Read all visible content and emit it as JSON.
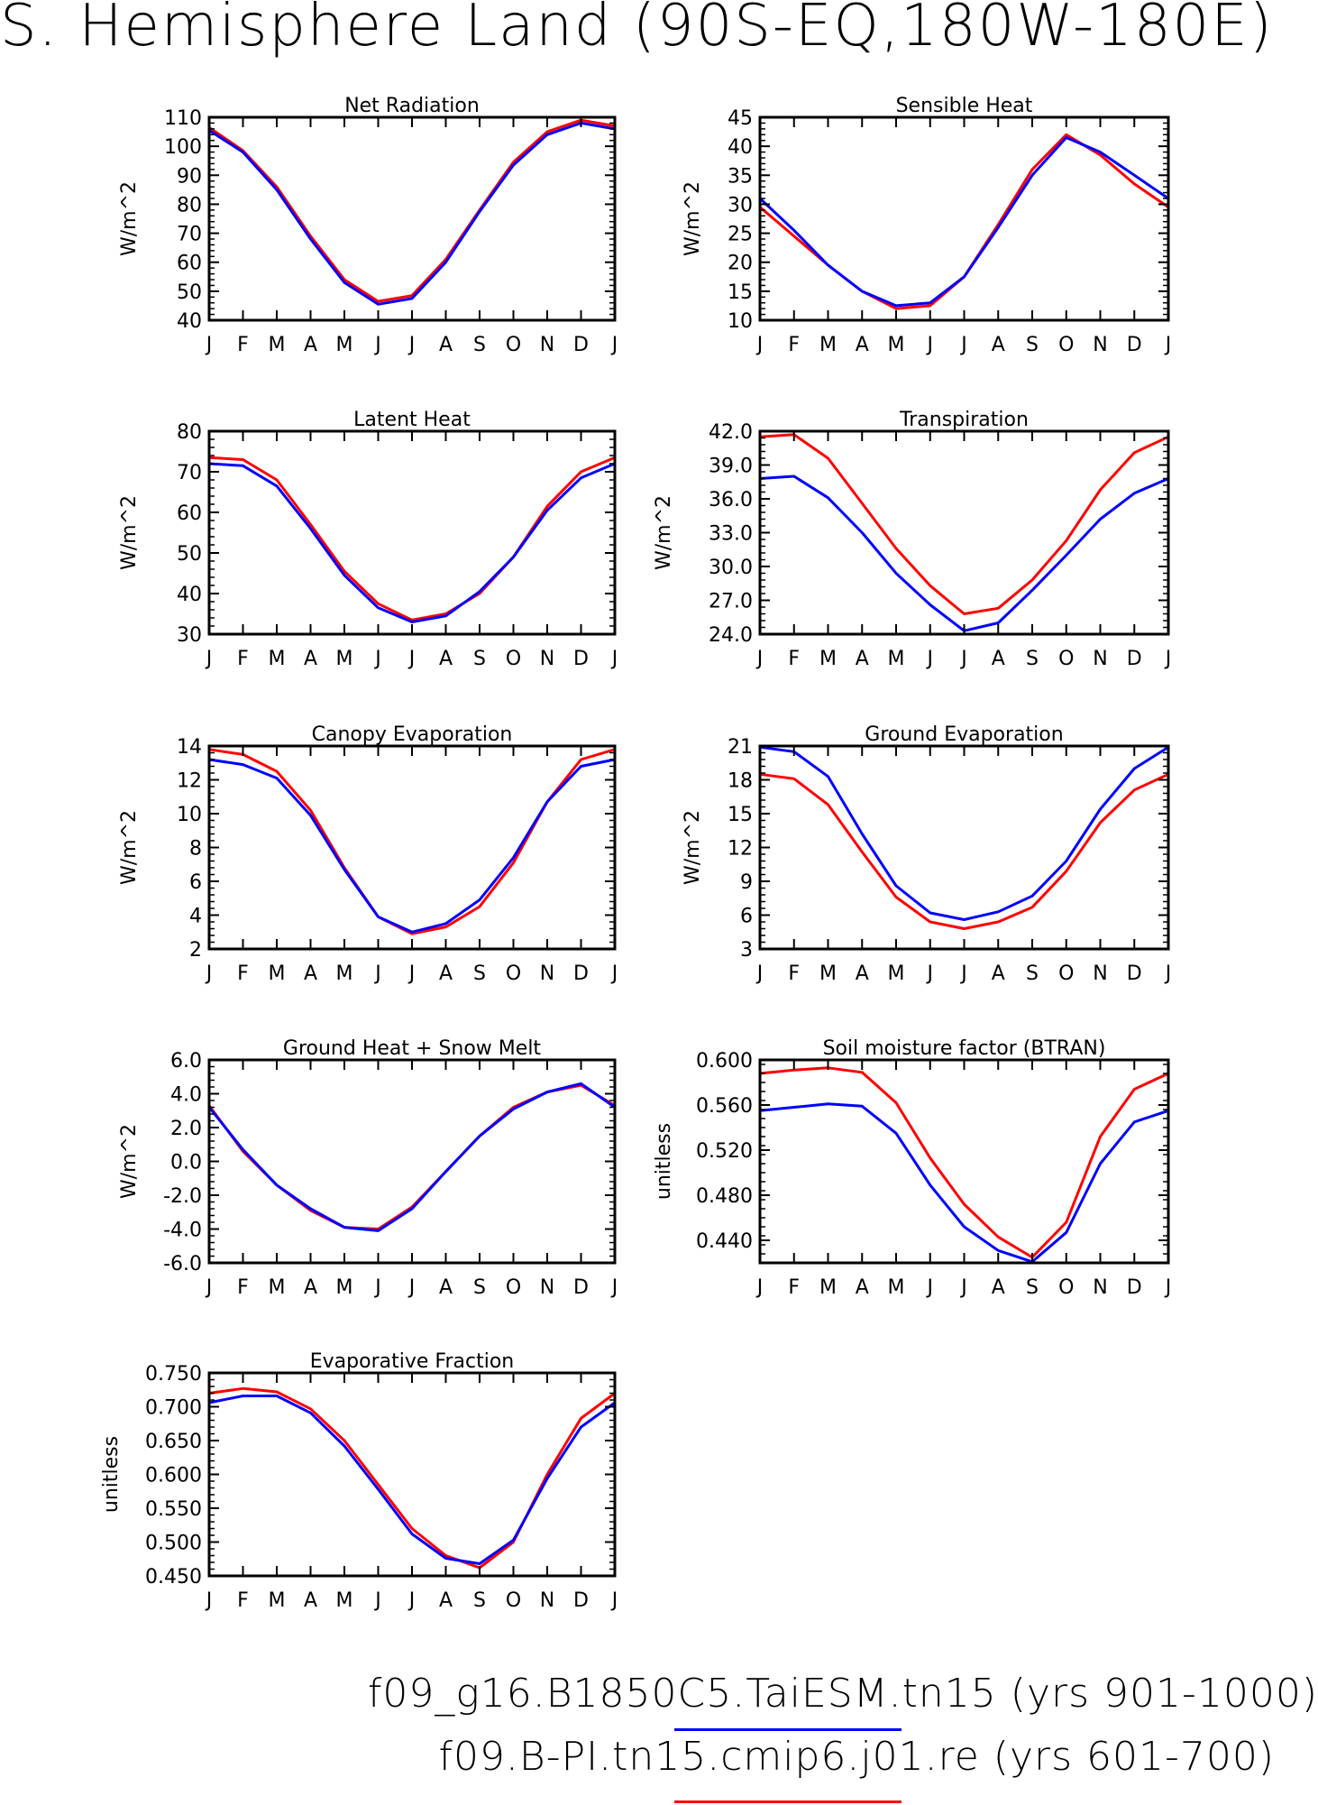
{
  "page": {
    "title": "S. Hemisphere Land (90S-EQ,180W-180E)"
  },
  "legend": [
    {
      "text": "f09_g16.B1850C5.TaiESM.tn15 (yrs 901-1000)",
      "color": "#0000ff"
    },
    {
      "text": "f09.B-PI.tn15.cmip6.j01.re (yrs 601-700)",
      "color": "#ff0000"
    }
  ],
  "chart_data": [
    {
      "type": "line",
      "title": "Net Radiation",
      "ylabel": "W/m^2",
      "categories": [
        "J",
        "F",
        "M",
        "A",
        "M",
        "J",
        "J",
        "A",
        "S",
        "O",
        "N",
        "D",
        "J"
      ],
      "ylim": [
        40,
        110
      ],
      "yticks": [
        "110",
        "100",
        "90",
        "80",
        "70",
        "60",
        "50",
        "40"
      ],
      "ytick_values": [
        110,
        100,
        90,
        80,
        70,
        60,
        50,
        40
      ],
      "series": [
        {
          "color": "#ff0000",
          "values": [
            106.5,
            98.5,
            86,
            69,
            54,
            46.5,
            48.5,
            61,
            78,
            94.5,
            105,
            109,
            107
          ]
        },
        {
          "color": "#0000ff",
          "values": [
            105.5,
            98,
            85,
            68,
            53,
            45.5,
            47.5,
            60,
            77.5,
            93.5,
            104,
            108,
            106
          ]
        }
      ]
    },
    {
      "type": "line",
      "title": "Sensible Heat",
      "ylabel": "W/m^2",
      "categories": [
        "J",
        "F",
        "M",
        "A",
        "M",
        "J",
        "J",
        "A",
        "S",
        "O",
        "N",
        "D",
        "J"
      ],
      "ylim": [
        10,
        45
      ],
      "yticks": [
        "45",
        "40",
        "35",
        "30",
        "25",
        "20",
        "15",
        "10"
      ],
      "ytick_values": [
        45,
        40,
        35,
        30,
        25,
        20,
        15,
        10
      ],
      "series": [
        {
          "color": "#ff0000",
          "values": [
            29.5,
            24.5,
            19.5,
            15,
            12,
            12.5,
            17.5,
            26.5,
            36,
            42,
            38.5,
            33.5,
            29.5
          ]
        },
        {
          "color": "#0000ff",
          "values": [
            31,
            25.5,
            19.5,
            15,
            12.5,
            13,
            17.5,
            26,
            35,
            41.5,
            39,
            35,
            31
          ]
        }
      ]
    },
    {
      "type": "line",
      "title": "Latent Heat",
      "ylabel": "W/m^2",
      "categories": [
        "J",
        "F",
        "M",
        "A",
        "M",
        "J",
        "J",
        "A",
        "S",
        "O",
        "N",
        "D",
        "J"
      ],
      "ylim": [
        30,
        80
      ],
      "yticks": [
        "80",
        "70",
        "60",
        "50",
        "40",
        "30"
      ],
      "ytick_values": [
        80,
        70,
        60,
        50,
        40,
        30
      ],
      "series": [
        {
          "color": "#ff0000",
          "values": [
            73.5,
            73,
            68,
            57,
            45.5,
            37.5,
            33.5,
            35,
            40,
            49,
            61.5,
            70,
            73.5
          ]
        },
        {
          "color": "#0000ff",
          "values": [
            72,
            71.5,
            66.5,
            56,
            44.5,
            36.5,
            33,
            34.5,
            40.5,
            49,
            60.5,
            68.5,
            72
          ]
        }
      ]
    },
    {
      "type": "line",
      "title": "Transpiration",
      "ylabel": "W/m^2",
      "categories": [
        "J",
        "F",
        "M",
        "A",
        "M",
        "J",
        "J",
        "A",
        "S",
        "O",
        "N",
        "D",
        "J"
      ],
      "ylim": [
        24,
        42
      ],
      "yticks": [
        "42.0",
        "39.0",
        "36.0",
        "33.0",
        "30.0",
        "27.0",
        "24.0"
      ],
      "ytick_values": [
        42,
        39,
        36,
        33,
        30,
        27,
        24
      ],
      "series": [
        {
          "color": "#ff0000",
          "values": [
            41.5,
            41.7,
            39.6,
            35.6,
            31.6,
            28.3,
            25.8,
            26.3,
            28.8,
            32.3,
            36.8,
            40.1,
            41.5
          ]
        },
        {
          "color": "#0000ff",
          "values": [
            37.8,
            38,
            36.1,
            33,
            29.4,
            26.6,
            24.3,
            25,
            27.9,
            31,
            34.2,
            36.5,
            37.8
          ]
        }
      ]
    },
    {
      "type": "line",
      "title": "Canopy Evaporation",
      "ylabel": "W/m^2",
      "categories": [
        "J",
        "F",
        "M",
        "A",
        "M",
        "J",
        "J",
        "A",
        "S",
        "O",
        "N",
        "D",
        "J"
      ],
      "ylim": [
        2,
        14
      ],
      "yticks": [
        "14",
        "12",
        "10",
        "8",
        "6",
        "4",
        "2"
      ],
      "ytick_values": [
        14,
        12,
        10,
        8,
        6,
        4,
        2
      ],
      "series": [
        {
          "color": "#ff0000",
          "values": [
            13.8,
            13.5,
            12.5,
            10.2,
            6.8,
            3.9,
            2.9,
            3.3,
            4.5,
            7.1,
            10.7,
            13.2,
            13.8
          ]
        },
        {
          "color": "#0000ff",
          "values": [
            13.2,
            12.9,
            12.1,
            9.9,
            6.7,
            3.9,
            3,
            3.5,
            4.9,
            7.4,
            10.7,
            12.8,
            13.2
          ]
        }
      ]
    },
    {
      "type": "line",
      "title": "Ground Evaporation",
      "ylabel": "W/m^2",
      "categories": [
        "J",
        "F",
        "M",
        "A",
        "M",
        "J",
        "J",
        "A",
        "S",
        "O",
        "N",
        "D",
        "J"
      ],
      "ylim": [
        3,
        21
      ],
      "yticks": [
        "21",
        "18",
        "15",
        "12",
        "9",
        "6",
        "3"
      ],
      "ytick_values": [
        21,
        18,
        15,
        12,
        9,
        6,
        3
      ],
      "series": [
        {
          "color": "#ff0000",
          "values": [
            18.5,
            18.1,
            15.8,
            11.6,
            7.6,
            5.4,
            4.8,
            5.4,
            6.7,
            9.9,
            14.2,
            17.1,
            18.5
          ]
        },
        {
          "color": "#0000ff",
          "values": [
            20.9,
            20.5,
            18.3,
            13.2,
            8.6,
            6.2,
            5.6,
            6.3,
            7.7,
            10.8,
            15.4,
            19,
            20.9
          ]
        }
      ]
    },
    {
      "type": "line",
      "title": "Ground Heat + Snow Melt",
      "ylabel": "W/m^2",
      "categories": [
        "J",
        "F",
        "M",
        "A",
        "M",
        "J",
        "J",
        "A",
        "S",
        "O",
        "N",
        "D",
        "J"
      ],
      "ylim": [
        -6,
        6
      ],
      "yticks": [
        "6.0",
        "4.0",
        "2.0",
        "0.0",
        "-2.0",
        "-4.0",
        "-6.0"
      ],
      "ytick_values": [
        6,
        4,
        2,
        0,
        -2,
        -4,
        -6
      ],
      "series": [
        {
          "color": "#ff0000",
          "values": [
            3.3,
            0.6,
            -1.4,
            -2.9,
            -3.9,
            -4,
            -2.7,
            -0.6,
            1.5,
            3.2,
            4.1,
            4.5,
            3.3
          ]
        },
        {
          "color": "#0000ff",
          "values": [
            3.2,
            0.7,
            -1.4,
            -2.8,
            -3.9,
            -4.1,
            -2.8,
            -0.6,
            1.5,
            3.1,
            4.1,
            4.6,
            3.2
          ]
        }
      ]
    },
    {
      "type": "line",
      "title": "Soil moisture factor (BTRAN)",
      "ylabel": "unitless",
      "categories": [
        "J",
        "F",
        "M",
        "A",
        "M",
        "J",
        "J",
        "A",
        "S",
        "O",
        "N",
        "D",
        "J"
      ],
      "ylim": [
        0.42,
        0.6
      ],
      "yticks": [
        "0.600",
        "0.560",
        "0.520",
        "0.480",
        "0.440"
      ],
      "ytick_values": [
        0.6,
        0.56,
        0.52,
        0.48,
        0.44
      ],
      "series": [
        {
          "color": "#ff0000",
          "values": [
            0.588,
            0.591,
            0.593,
            0.589,
            0.562,
            0.513,
            0.472,
            0.443,
            0.425,
            0.456,
            0.532,
            0.574,
            0.588
          ]
        },
        {
          "color": "#0000ff",
          "values": [
            0.555,
            0.558,
            0.561,
            0.559,
            0.535,
            0.489,
            0.452,
            0.431,
            0.421,
            0.447,
            0.508,
            0.545,
            0.555
          ]
        }
      ]
    },
    {
      "type": "line",
      "title": "Evaporative Fraction",
      "ylabel": "unitless",
      "categories": [
        "J",
        "F",
        "M",
        "A",
        "M",
        "J",
        "J",
        "A",
        "S",
        "O",
        "N",
        "D",
        "J"
      ],
      "ylim": [
        0.45,
        0.75
      ],
      "yticks": [
        "0.750",
        "0.700",
        "0.650",
        "0.600",
        "0.550",
        "0.500",
        "0.450"
      ],
      "ytick_values": [
        0.75,
        0.7,
        0.65,
        0.6,
        0.55,
        0.5,
        0.45
      ],
      "series": [
        {
          "color": "#ff0000",
          "values": [
            0.72,
            0.727,
            0.722,
            0.697,
            0.65,
            0.585,
            0.52,
            0.48,
            0.462,
            0.5,
            0.6,
            0.683,
            0.72
          ]
        },
        {
          "color": "#0000ff",
          "values": [
            0.706,
            0.716,
            0.716,
            0.691,
            0.642,
            0.578,
            0.512,
            0.476,
            0.468,
            0.503,
            0.594,
            0.67,
            0.706
          ]
        }
      ]
    }
  ]
}
